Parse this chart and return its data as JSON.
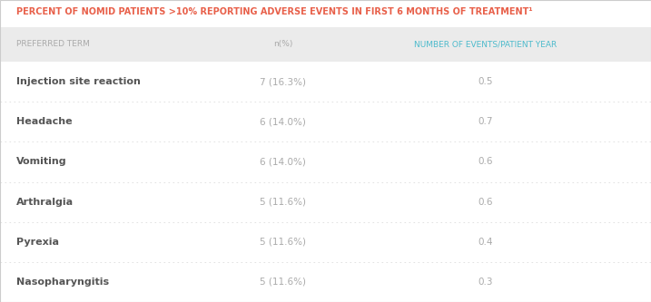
{
  "title": "PERCENT OF NOMID PATIENTS >10% REPORTING ADVERSE EVENTS IN FIRST 6 MONTHS OF TREATMENT¹",
  "title_color": "#E8604A",
  "header_bg_color": "#EBEBEB",
  "col_headers": [
    "PREFERRED TERM",
    "n(%)",
    "NUMBER OF EVENTS/PATIENT YEAR"
  ],
  "col_header_colors": [
    "#AAAAAA",
    "#AAAAAA",
    "#4DBBCC"
  ],
  "rows": [
    [
      "Injection site reaction",
      "7 (16.3%)",
      "0.5"
    ],
    [
      "Headache",
      "6 (14.0%)",
      "0.7"
    ],
    [
      "Vomiting",
      "6 (14.0%)",
      "0.6"
    ],
    [
      "Arthralgia",
      "5 (11.6%)",
      "0.6"
    ],
    [
      "Pyrexia",
      "5 (11.6%)",
      "0.4"
    ],
    [
      "Nasopharyngitis",
      "5 (11.6%)",
      "0.3"
    ]
  ],
  "term_color": "#555555",
  "n_pct_color": "#AAAAAA",
  "events_color": "#AAAAAA",
  "divider_color": "#DDDDDD",
  "figsize": [
    7.17,
    3.33
  ],
  "dpi": 100,
  "title_fontsize": 7.0,
  "header_fontsize": 6.5,
  "row_fontsize": 8.0,
  "row_data_fontsize": 7.5
}
